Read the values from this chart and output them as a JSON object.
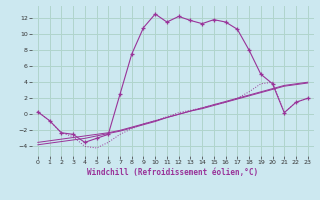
{
  "xlabel": "Windchill (Refroidissement éolien,°C)",
  "background_color": "#cce8f0",
  "grid_color": "#b0d4cc",
  "line_color": "#993399",
  "xlim": [
    -0.5,
    23.5
  ],
  "ylim": [
    -5.2,
    13.5
  ],
  "xticks": [
    0,
    1,
    2,
    3,
    4,
    5,
    6,
    7,
    8,
    9,
    10,
    11,
    12,
    13,
    14,
    15,
    16,
    17,
    18,
    19,
    20,
    21,
    22,
    23
  ],
  "yticks": [
    -4,
    -2,
    0,
    2,
    4,
    6,
    8,
    10,
    12
  ],
  "hours": [
    0,
    1,
    2,
    3,
    4,
    5,
    6,
    7,
    8,
    9,
    10,
    11,
    12,
    13,
    14,
    15,
    16,
    17,
    18,
    19,
    20,
    21,
    22,
    23
  ],
  "temp": [
    0.3,
    -0.8,
    -2.3,
    -2.5,
    -3.5,
    -3.0,
    -2.5,
    2.5,
    7.5,
    10.8,
    12.5,
    11.5,
    12.2,
    11.7,
    11.3,
    11.8,
    11.5,
    10.6,
    8.0,
    5.0,
    3.8,
    0.2,
    1.5,
    2.0
  ],
  "windchill_dotted": [
    0.3,
    -0.8,
    -2.3,
    -2.8,
    -4.0,
    -4.2,
    -3.5,
    -2.5,
    -1.8,
    -1.2,
    -0.8,
    -0.3,
    0.2,
    0.5,
    0.8,
    1.2,
    1.5,
    2.0,
    2.8,
    3.8,
    4.0,
    0.2,
    1.5,
    2.0
  ],
  "linear1": [
    -3.5,
    -3.3,
    -3.1,
    -2.9,
    -2.7,
    -2.5,
    -2.3,
    -2.0,
    -1.6,
    -1.2,
    -0.8,
    -0.4,
    0.0,
    0.4,
    0.7,
    1.1,
    1.5,
    1.9,
    2.3,
    2.7,
    3.1,
    3.5,
    3.7,
    3.9
  ],
  "linear2": [
    -3.8,
    -3.6,
    -3.4,
    -3.2,
    -3.0,
    -2.7,
    -2.4,
    -2.1,
    -1.7,
    -1.3,
    -0.9,
    -0.4,
    0.0,
    0.4,
    0.8,
    1.2,
    1.6,
    2.0,
    2.4,
    2.8,
    3.2,
    3.6,
    3.8,
    4.0
  ]
}
